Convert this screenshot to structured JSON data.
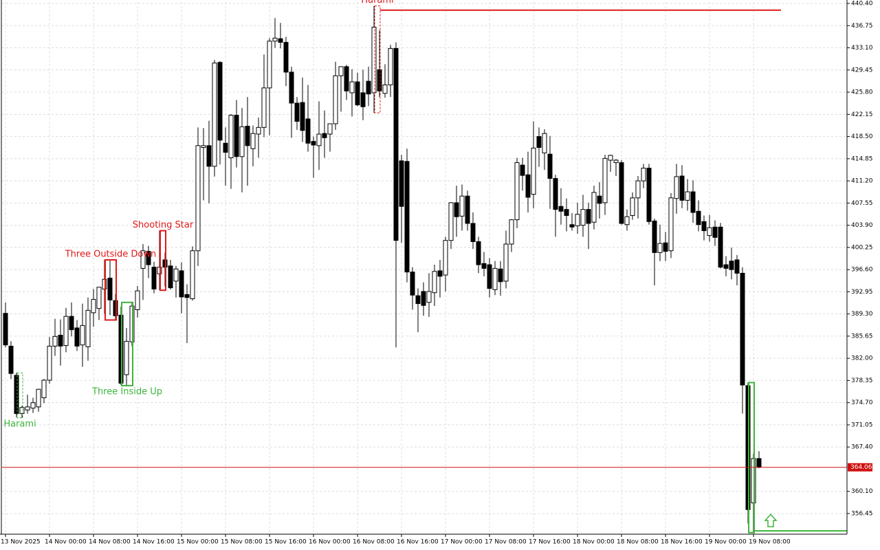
{
  "chart_data": {
    "type": "candlestick",
    "open": [
      389.4,
      384.0,
      379.2,
      372.9,
      373.5,
      373.8,
      374.0,
      375.5,
      378.4,
      384.0,
      385.8,
      384.1,
      388.9,
      387.0,
      384.2,
      383.9,
      389.5,
      390.2,
      393.4,
      395.2,
      391.5,
      389.1,
      379.3,
      384.7,
      390.0,
      396.8,
      399.6,
      397.0,
      395.9,
      398.2,
      397.2,
      394.7,
      396.4,
      392.5,
      391.8,
      399.7,
      416.7,
      417.0,
      413.6,
      430.7,
      417.4,
      415.0,
      422.0,
      415.2,
      420.2,
      416.5,
      418.9,
      420.0,
      426.5,
      434.2,
      434.6,
      434.0,
      429.1,
      424.0,
      424.1,
      421.4,
      417.7,
      417.0,
      419.0,
      418.9,
      420.6,
      428.5,
      430.0,
      425.7,
      427.5,
      425.7,
      427.6,
      425.7,
      429.5,
      425.6,
      427.0,
      433.0,
      414.5,
      414.4,
      396.2,
      392.3,
      393.0,
      391.2,
      392.8,
      396.4,
      395.7,
      401.4,
      407.6,
      405.4,
      408.7,
      404.2,
      401.2,
      397.6,
      397.4,
      393.3,
      396.7,
      394.7,
      400.8,
      404.8,
      413.8,
      412.2,
      409.0,
      418.5,
      415.8,
      415.6,
      411.6,
      407.0,
      406.5,
      404.0,
      403.8,
      403.9,
      406.5,
      404.4,
      408.7,
      407.6,
      414.6,
      414.2,
      414.2,
      404.0,
      405.5,
      408.4,
      411.2,
      413.3,
      404.6,
      399.4,
      401.0,
      399.7,
      408.3,
      412.0,
      408.0,
      409.4,
      406.2,
      404.5,
      402.2,
      403.6,
      403.6,
      397.4,
      398.0,
      398.2,
      396.0,
      377.5,
      358.2,
      365.5
    ],
    "high": [
      391.2,
      384.8,
      379.6,
      374.2,
      376.0,
      375.5,
      377.0,
      378.6,
      385.5,
      388.5,
      388.4,
      390.3,
      391.2,
      388.3,
      391.0,
      392.0,
      393.4,
      393.7,
      398.2,
      398.2,
      392.6,
      390.5,
      387.0,
      391.2,
      393.9,
      400.8,
      400.5,
      397.9,
      403.0,
      399.4,
      398.2,
      397.2,
      397.8,
      394.2,
      400.4,
      420.0,
      419.9,
      421.1,
      431.1,
      430.9,
      420.0,
      422.2,
      424.5,
      423.2,
      425.0,
      420.3,
      421.6,
      432.0,
      434.7,
      438.0,
      437.2,
      434.9,
      430.0,
      425.0,
      428.2,
      427.0,
      418.5,
      424.3,
      422.8,
      420.0,
      430.8,
      430.0,
      430.3,
      429.6,
      429.0,
      429.5,
      430.0,
      440.0,
      436.0,
      430.4,
      433.6,
      434.0,
      415.5,
      416.5,
      397.0,
      393.5,
      394.5,
      396.0,
      397.4,
      398.2,
      402.0,
      407.7,
      410.4,
      410.6,
      409.6,
      406.0,
      402.0,
      399.5,
      398.5,
      398.0,
      398.0,
      403.0,
      404.9,
      415.0,
      415.0,
      416.0,
      421.0,
      420.0,
      419.7,
      418.6,
      412.2,
      410.0,
      408.3,
      405.9,
      407.6,
      408.9,
      407.6,
      410.4,
      411.0,
      415.5,
      415.5,
      414.8,
      414.6,
      406.5,
      409.3,
      412.0,
      414.0,
      414.0,
      405.0,
      404.0,
      402.8,
      409.2,
      414.0,
      413.8,
      411.5,
      411.3,
      408.0,
      405.5,
      405.6,
      404.7,
      404.3,
      398.8,
      400.2,
      399.0,
      397.0,
      378.0,
      366.3,
      366.7
    ],
    "low": [
      383.8,
      378.6,
      372.3,
      372.2,
      372.9,
      373.0,
      373.2,
      374.6,
      377.8,
      382.4,
      380.8,
      383.0,
      385.6,
      383.2,
      380.6,
      381.6,
      387.2,
      388.3,
      389.3,
      389.1,
      388.3,
      377.6,
      377.5,
      384.0,
      388.7,
      391.6,
      395.2,
      392.7,
      393.2,
      393.8,
      393.3,
      392.0,
      389.4,
      384.5,
      391.5,
      397.2,
      408.0,
      407.5,
      411.9,
      413.9,
      410.4,
      409.9,
      413.4,
      409.3,
      410.4,
      413.6,
      415.0,
      418.4,
      418.7,
      433.1,
      433.0,
      426.8,
      418.3,
      419.6,
      417.6,
      416.0,
      411.7,
      413.0,
      415.0,
      416.0,
      419.6,
      422.6,
      424.5,
      421.8,
      423.5,
      421.2,
      423.5,
      422.4,
      425.0,
      424.9,
      425.0,
      383.8,
      401.0,
      394.5,
      390.0,
      386.3,
      389.0,
      388.8,
      390.6,
      392.0,
      393.0,
      400.0,
      402.0,
      403.0,
      403.0,
      400.0,
      396.0,
      395.5,
      392.0,
      392.4,
      392.3,
      393.5,
      399.5,
      403.4,
      409.6,
      406.0,
      406.7,
      413.5,
      413.0,
      406.6,
      402.0,
      404.0,
      402.9,
      403.0,
      402.5,
      402.0,
      400.0,
      403.2,
      405.0,
      405.6,
      412.7,
      412.0,
      404.0,
      403.0,
      404.8,
      405.0,
      410.0,
      404.0,
      394.0,
      398.0,
      398.0,
      398.5,
      405.8,
      406.7,
      406.3,
      404.3,
      402.9,
      401.4,
      401.2,
      400.5,
      396.8,
      395.5,
      395.0,
      394.0,
      372.9,
      354.8,
      353.3,
      363.9
    ],
    "close": [
      384.2,
      379.5,
      372.9,
      373.9,
      374.0,
      374.7,
      376.9,
      378.4,
      384.0,
      385.6,
      384.0,
      388.9,
      386.7,
      384.0,
      387.4,
      389.9,
      391.7,
      393.7,
      395.0,
      391.6,
      389.0,
      377.9,
      384.8,
      390.6,
      393.1,
      399.7,
      397.4,
      393.4,
      397.0,
      397.0,
      393.6,
      396.7,
      392.1,
      392.0,
      399.7,
      417.0,
      417.0,
      413.6,
      430.6,
      417.9,
      415.9,
      422.0,
      415.2,
      420.1,
      417.0,
      419.0,
      420.0,
      426.5,
      434.2,
      434.7,
      434.0,
      429.1,
      424.0,
      421.0,
      419.5,
      417.4,
      417.1,
      418.9,
      418.3,
      420.6,
      428.5,
      430.0,
      426.0,
      427.5,
      423.7,
      423.4,
      425.5,
      436.5,
      426.0,
      427.0,
      433.0,
      401.4,
      407.0,
      396.2,
      392.4,
      391.0,
      390.7,
      393.0,
      396.3,
      395.5,
      401.4,
      407.6,
      405.3,
      408.7,
      404.2,
      401.2,
      397.4,
      396.8,
      393.5,
      396.8,
      394.6,
      400.8,
      404.8,
      414.2,
      412.1,
      408.5,
      416.6,
      416.7,
      419.0,
      411.6,
      406.5,
      406.2,
      405.5,
      403.6,
      405.7,
      406.5,
      404.2,
      409.3,
      407.5,
      414.9,
      415.4,
      414.6,
      404.2,
      405.3,
      408.4,
      411.2,
      413.3,
      404.5,
      399.4,
      400.9,
      399.6,
      408.4,
      411.9,
      408.0,
      409.4,
      406.0,
      404.0,
      403.0,
      403.5,
      401.9,
      397.0,
      396.8,
      396.6,
      396.0,
      377.6,
      357.1,
      365.5,
      364.06
    ],
    "ylim": [
      353.05,
      440.63
    ],
    "yticks": [
      {
        "value": 440.4,
        "label": "440.40"
      },
      436.75,
      {
        "value": 433.1,
        "label": "433.10"
      },
      429.45,
      {
        "value": 425.8,
        "label": "425.80"
      },
      422.15,
      {
        "value": 418.5,
        "label": "418.50"
      },
      414.85,
      {
        "value": 411.2,
        "label": "411.20"
      },
      407.55,
      {
        "value": 403.9,
        "label": "403.90"
      },
      400.25,
      {
        "value": 396.6,
        "label": "396.60"
      },
      392.95,
      {
        "value": 389.3,
        "label": "389.30"
      },
      385.65,
      {
        "value": 382,
        "label": "382.00"
      },
      378.35,
      {
        "value": 374.7,
        "label": "374.70"
      },
      371.05,
      {
        "value": 367.4,
        "label": "367.40"
      },
      {
        "value": 360.1,
        "label": "360.10"
      },
      356.45
    ],
    "xticks": [
      {
        "value": 0,
        "label": "13 Nov 2025"
      },
      {
        "value": 8,
        "label": "14 Nov 00:00"
      },
      {
        "value": 16,
        "label": "14 Nov 08:00"
      },
      {
        "value": 24,
        "label": "14 Nov 16:00"
      },
      {
        "value": 32,
        "label": "15 Nov 00:00"
      },
      {
        "value": 40,
        "label": "15 Nov 08:00"
      },
      {
        "value": 48,
        "label": "15 Nov 16:00"
      },
      {
        "value": 56,
        "label": "16 Nov 00:00"
      },
      {
        "value": 64,
        "label": "16 Nov 08:00"
      },
      {
        "value": 72,
        "label": "16 Nov 16:00"
      },
      {
        "value": 80,
        "label": "17 Nov 00:00"
      },
      {
        "value": 88,
        "label": "17 Nov 08:00"
      },
      {
        "value": 96,
        "label": "17 Nov 16:00"
      },
      {
        "value": 104,
        "label": "18 Nov 00:00"
      },
      {
        "value": 112,
        "label": "18 Nov 08:00"
      },
      {
        "value": 120,
        "label": "18 Nov 16:00"
      },
      {
        "value": 128,
        "label": "19 Nov 00:00"
      },
      {
        "value": 136,
        "label": "19 Nov 08:00"
      }
    ],
    "grid": true,
    "current_price": 364.06,
    "patterns": [
      {
        "label": "Harami",
        "color": "#3cb43c",
        "candles": [
          2,
          3
        ],
        "style": "dashed",
        "label_side": "below"
      },
      {
        "label": "Three Outside Down",
        "color": "#e01818",
        "candles": [
          18,
          20
        ],
        "style": "solid",
        "label_side": "above"
      },
      {
        "label": "Three Inside Up",
        "color": "#3cb43c",
        "candles": [
          21,
          23
        ],
        "style": "solid",
        "label_side": "below"
      },
      {
        "label": "Shooting Star",
        "color": "#e01818",
        "candles": [
          28,
          29
        ],
        "style": "solid",
        "label_side": "above"
      },
      {
        "label": "Harami",
        "color": "#e01818",
        "candles": [
          67,
          68
        ],
        "style": "dashed",
        "label_side": "above",
        "level": 439.3,
        "level_to": 141
      },
      {
        "color": "#3cb43c",
        "candles": [
          135,
          136
        ],
        "style": "solid",
        "level": 353.6,
        "level_to": 160,
        "arrow": "up"
      }
    ]
  }
}
